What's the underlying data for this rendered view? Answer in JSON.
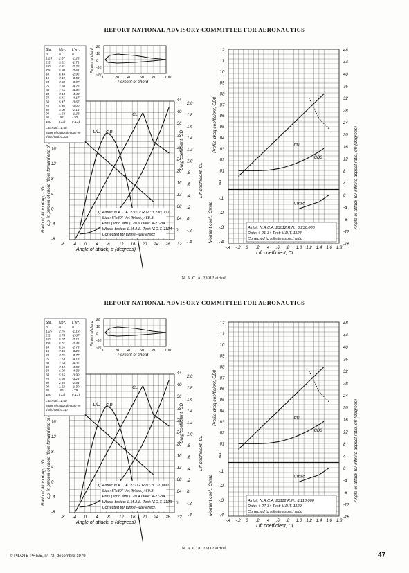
{
  "header": "REPORT NATIONAL ADVISORY COMMITTEE FOR AERONAUTICS",
  "footer_left": "© PILOTE PRIVE, n° 72, décembre 1979",
  "page_number": "47",
  "figures": [
    {
      "caption": "N. A. C. A. 23012 airfoil.",
      "ordinates": {
        "headers": [
          "Sta.",
          "Up'r.",
          "L'w'r."
        ],
        "rows": [
          [
            "0",
            "0",
            "0"
          ],
          [
            "1.25",
            "2.67",
            "-1.23"
          ],
          [
            "2.5",
            "3.61",
            "-1.71"
          ],
          [
            "5.0",
            "4.91",
            "-2.26"
          ],
          [
            "7.5",
            "5.80",
            "-2.61"
          ],
          [
            "10",
            "6.43",
            "-2.92"
          ],
          [
            "15",
            "7.19",
            "-3.50"
          ],
          [
            "20",
            "7.50",
            "-3.97"
          ],
          [
            "25",
            "7.60",
            "-4.28"
          ],
          [
            "30",
            "7.55",
            "-4.46"
          ],
          [
            "40",
            "7.14",
            "-4.48"
          ],
          [
            "50",
            "6.41",
            "-4.17"
          ],
          [
            "60",
            "5.47",
            "-3.67"
          ],
          [
            "70",
            "4.36",
            "-3.00"
          ],
          [
            "80",
            "3.08",
            "-2.16"
          ],
          [
            "90",
            "1.68",
            "-1.23"
          ],
          [
            "95",
            ".92",
            "-.70"
          ],
          [
            "100",
            "(.13)",
            "(-.13)"
          ]
        ],
        "le_rad": "L.E.Rad.: 1.58",
        "slope": "Slope of radius through end of chord: 0.305"
      },
      "info": [
        "Airfoil: N.A.C.A. 23012   R.N.: 3,230,000",
        "Size: 5\"x30\"        Vel.(ft/sec.): 68.3",
        "Pres.(st'nd.atm.): 20.9  Date: 4-21-34",
        "Where tested: L.M.A.L.  Test: V.D.T. 1124",
        "Corrected for tunnel-wall effect"
      ],
      "info_right": [
        "Airfoil: N.A.C.A. 23012         R.N.: 3,230,000",
        "Date: 4-21-34                Test: V.D.T. 1124",
        "Corrected to infinite aspect ratio"
      ],
      "curve_labels": {
        "ld": "L/D",
        "cp": "c.p.",
        "cl": "CL",
        "cd": "CD",
        "alpha": "α0",
        "cdo": "CD0",
        "cm": "Cmac"
      }
    },
    {
      "caption": "N. A. C. A. 23112 airfoil.",
      "ordinates": {
        "headers": [
          "Sta.",
          "Up'r.",
          "L'w'r."
        ],
        "rows": [
          [
            "0",
            "0",
            "0"
          ],
          [
            "1.25",
            "2.76",
            "-1.19"
          ],
          [
            "2.5",
            "3.75",
            "-1.67"
          ],
          [
            "5.0",
            "5.07",
            "-2.11"
          ],
          [
            "7.5",
            "6.01",
            "-2.45"
          ],
          [
            "10",
            "6.65",
            "-2.73"
          ],
          [
            "15",
            "7.45",
            "-3.26"
          ],
          [
            "20",
            "7.71",
            "-3.77"
          ],
          [
            "25",
            "7.74",
            "-4.13"
          ],
          [
            "30",
            "7.64",
            "-4.37"
          ],
          [
            "40",
            "7.10",
            "-4.52"
          ],
          [
            "50",
            "6.08",
            "-4.33"
          ],
          [
            "60",
            "5.15",
            "-3.90"
          ],
          [
            "70",
            "4.08",
            "-3.23"
          ],
          [
            "80",
            "2.85",
            "-2.43"
          ],
          [
            "90",
            "1.52",
            "-1.39"
          ],
          [
            "95",
            ".82",
            "-.79"
          ],
          [
            "100",
            "(.13)",
            "(-.13)"
          ]
        ],
        "le_rad": "L.E.Rad.: 1.58",
        "slope": "Slope of radius through end of chord: 0.317"
      },
      "info": [
        "Airfoil: N.A.C.A. 23112   R.N.: 3,110,000",
        "Size: 5\"x30\"        Vel.(ft/sec.): 69.8",
        "Pres.(st'nd.atm.): 20.4  Date: 4-27-34",
        "Where tested: L.M.A.L.  Test: V.D.T. 1129",
        "Corrected for tunnel-wall effect."
      ],
      "info_right": [
        "Airfoil: N.A.C.A. 23112         R.N.: 3,110,000",
        "Date: 4-27-34                Test: V.D.T. 1129",
        "Corrected to infinite aspect ratio"
      ],
      "curve_labels": {
        "ld": "L/D",
        "cp": "c.p.",
        "cl": "CL",
        "cd": "CD",
        "alpha": "α0",
        "cdo": "CD0",
        "cm": "Cmac"
      }
    }
  ],
  "axes": {
    "left_x_label": "Angle of attack, α (degrees)",
    "left_x_ticks": [
      "-8",
      "-4",
      "0",
      "4",
      "8",
      "12",
      "16",
      "20",
      "24",
      "28",
      "32"
    ],
    "ld_ticks": [
      "28",
      "24",
      "20",
      "16",
      "12",
      "8",
      "4",
      "0",
      "-4",
      "-8"
    ],
    "left_y_label": "Ratio of lift to drag, L/D",
    "cp_y_label": "c.p. in percent of chord (from forward end of chord)",
    "cl_ticks": [
      "2.0",
      "1.8",
      "1.6",
      "1.4",
      "1.2",
      "1.0",
      ".8",
      ".6",
      ".4",
      ".2",
      "0",
      "-.2",
      "-.4"
    ],
    "cl_label": "Lift coefficient, CL",
    "cd_ticks": [
      ".44",
      ".40",
      ".36",
      ".32",
      ".28",
      ".24",
      ".20",
      ".16",
      ".12",
      ".08",
      ".04",
      "0"
    ],
    "cd_label": "Drag coefficient, CD",
    "right_x_label": "Lift coefficient, CL",
    "right_x_ticks": [
      "-.4",
      "-.2",
      "0",
      ".2",
      ".4",
      ".6",
      ".8",
      "1.0",
      "1.2",
      "1.4",
      "1.6",
      "1.8"
    ],
    "cdo_ticks": [
      ".12",
      ".11",
      ".10",
      ".09",
      ".08",
      ".07",
      ".06",
      ".05",
      ".04",
      ".03",
      ".02",
      ".01",
      "0"
    ],
    "cdo_label": "Profile-drag coefficient, CD0",
    "cm_ticks": [
      "0",
      "-.1",
      "-.2",
      "-.3",
      "-.4"
    ],
    "cm_label": "Moment coef., Cmac",
    "alpha_ticks": [
      "48",
      "44",
      "40",
      "36",
      "32",
      "28",
      "24",
      "20",
      "16",
      "12",
      "8",
      "4",
      "0",
      "-4",
      "-8",
      "-12",
      "-16"
    ],
    "alpha_label": "Angle of attack for infinite aspect ratio, α0 (degrees)",
    "section_x_label": "Percent of chord",
    "section_x_ticks": [
      "0",
      "20",
      "40",
      "60",
      "80",
      "100"
    ],
    "section_y_ticks": [
      "20",
      "10",
      "0",
      "-10",
      "-20"
    ],
    "section_y_label": "Percent of chord"
  }
}
